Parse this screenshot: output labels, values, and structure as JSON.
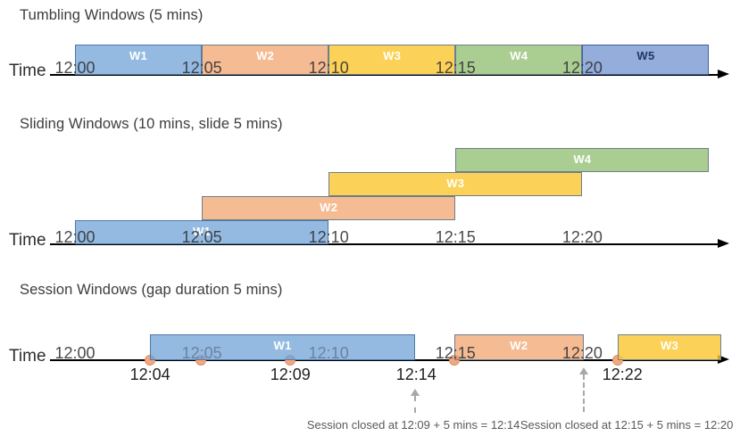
{
  "palette": {
    "blue": {
      "fill": "rgba(108,160,214,0.72)",
      "border": "#4d79a8",
      "text": "#ffffff"
    },
    "periwinkle": {
      "fill": "rgba(110,145,205,0.74)",
      "border": "#3d5e9e",
      "text": "#1f3864"
    },
    "orange": {
      "fill": "rgba(240,152,90,0.66)",
      "border": "#6e7e8e",
      "text": "#ffffff"
    },
    "yellow": {
      "fill": "rgba(251,199,50,0.82)",
      "border": "#6e7e8e",
      "text": "#ffffff"
    },
    "green": {
      "fill": "rgba(137,186,103,0.72)",
      "border": "#6e7e8e",
      "text": "#ffffff"
    }
  },
  "timeline_color": "#000000",
  "event_dot_color": {
    "fill": "#f2a981",
    "border": "#e08c62"
  },
  "sections": [
    {
      "id": "tumbling",
      "title": "Tumbling Windows (5 mins)",
      "time_axis_label": "Time",
      "scale_labels": [
        {
          "text": "12:00",
          "min": 0
        },
        {
          "text": "12:05",
          "min": 5
        },
        {
          "text": "12:10",
          "min": 10
        },
        {
          "text": "12:15",
          "min": 15
        },
        {
          "text": "12:20",
          "min": 20
        }
      ],
      "windows": [
        {
          "label": "W1",
          "start_min": 0,
          "end_min": 5,
          "color": "blue",
          "row": 0
        },
        {
          "label": "W2",
          "start_min": 5,
          "end_min": 10,
          "color": "orange",
          "row": 0
        },
        {
          "label": "W3",
          "start_min": 10,
          "end_min": 15,
          "color": "yellow",
          "row": 0
        },
        {
          "label": "W4",
          "start_min": 15,
          "end_min": 20,
          "color": "green",
          "row": 0
        },
        {
          "label": "W5",
          "start_min": 20,
          "end_min": 25,
          "color": "periwinkle",
          "row": 0
        }
      ]
    },
    {
      "id": "sliding",
      "title": "Sliding Windows (10 mins, slide 5 mins)",
      "time_axis_label": "Time",
      "scale_labels": [
        {
          "text": "12:00",
          "min": 0
        },
        {
          "text": "12:05",
          "min": 5
        },
        {
          "text": "12:10",
          "min": 10
        },
        {
          "text": "12:15",
          "min": 15
        },
        {
          "text": "12:20",
          "min": 20
        }
      ],
      "windows": [
        {
          "label": "W1",
          "start_min": 0,
          "end_min": 10,
          "color": "blue",
          "row": 0
        },
        {
          "label": "W2",
          "start_min": 5,
          "end_min": 15,
          "color": "orange",
          "row": 1
        },
        {
          "label": "W3",
          "start_min": 10,
          "end_min": 20,
          "color": "yellow",
          "row": 2
        },
        {
          "label": "W4",
          "start_min": 15,
          "end_min": 25,
          "color": "green",
          "row": 3
        }
      ]
    },
    {
      "id": "session",
      "title": "Session Windows (gap duration 5 mins)",
      "time_axis_label": "Time",
      "scale_labels": [
        {
          "text": "12:00",
          "min": 0
        },
        {
          "text": "12:05",
          "min": 5,
          "muted": true
        },
        {
          "text": "12:10",
          "min": 10,
          "muted": true
        },
        {
          "text": "12:15",
          "min": 15
        },
        {
          "text": "12:20",
          "min": 20
        }
      ],
      "windows": [
        {
          "label": "W1",
          "start_min": 2.95,
          "end_min": 13.42,
          "color": "blue",
          "row": 0
        },
        {
          "label": "W2",
          "start_min": 14.96,
          "end_min": 20.04,
          "color": "orange",
          "row": 0
        },
        {
          "label": "W3",
          "start_min": 21.41,
          "end_min": 25.46,
          "color": "yellow",
          "row": 0
        }
      ],
      "events_min": [
        2.96,
        4.96,
        8.49,
        14.96,
        21.41
      ],
      "event_labels": [
        {
          "text": "12:04",
          "min": 2.96
        },
        {
          "text": "12:09",
          "min": 8.49
        },
        {
          "text": "12:14",
          "min": 13.45
        },
        {
          "text": "12:22",
          "min": 21.58
        }
      ],
      "callout_arrows": [
        {
          "min": 13.42
        },
        {
          "min": 20.04
        }
      ],
      "annotations": [
        {
          "text": "Session closed at 12:09 + 5 mins = 12:14",
          "center_min": 13.34
        },
        {
          "text": "Session closed at 12:15 + 5 mins = 12:20",
          "center_min": 21.75
        }
      ]
    }
  ]
}
